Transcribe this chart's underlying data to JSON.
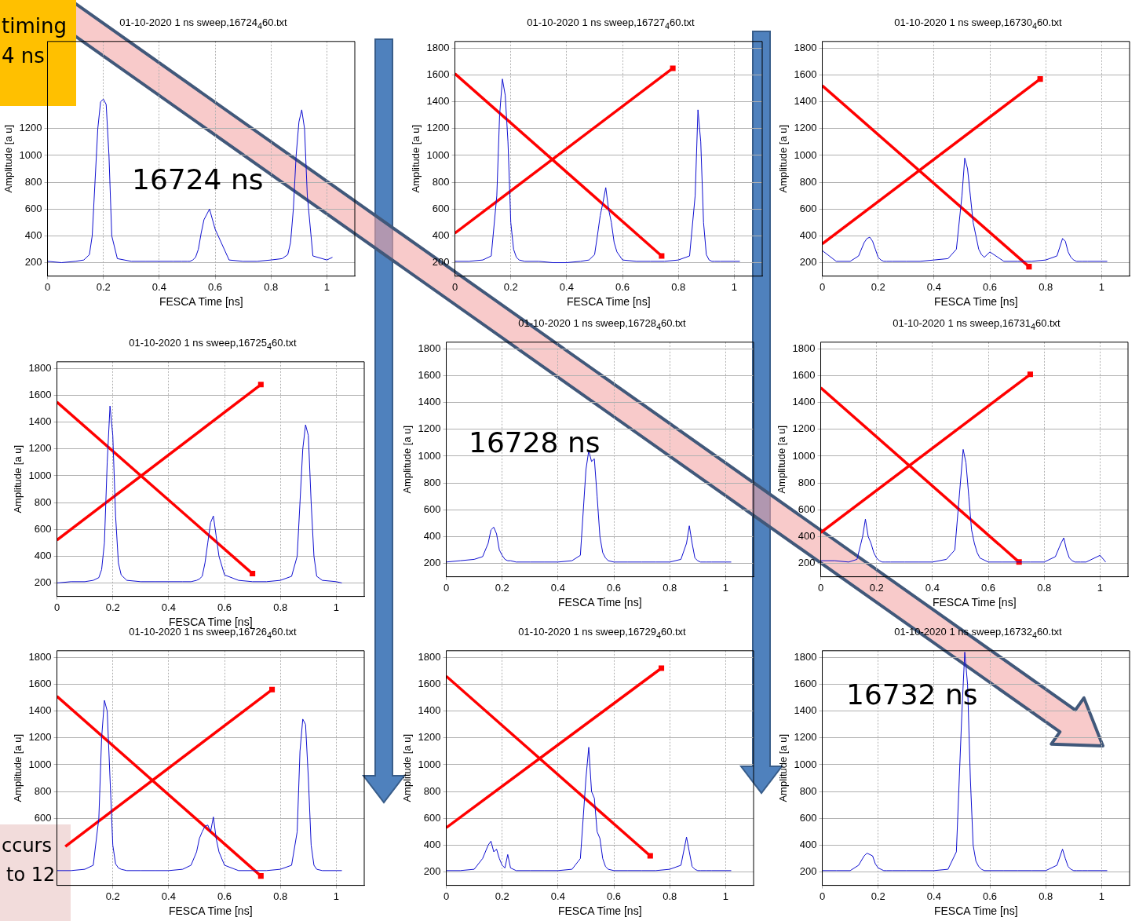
{
  "chart_data": [
    {
      "type": "line",
      "title": "01-10-2020 1 ns sweep,16724$_{4}$60.txt",
      "xlabel": "FESCA Time [ns]",
      "ylabel": "Amplitude [a u]",
      "annotations": [
        "timing",
        "4 ns",
        "16724 ns"
      ],
      "grid": true,
      "xlim": [
        0,
        1.1
      ],
      "xticks": [
        0,
        0.2,
        0.4,
        0.6,
        0.8,
        1
      ],
      "ylim": [
        100,
        1850
      ],
      "yticks": [
        200,
        400,
        600,
        800,
        1000,
        1200
      ],
      "x": [
        0,
        0.05,
        0.1,
        0.13,
        0.15,
        0.16,
        0.17,
        0.18,
        0.19,
        0.2,
        0.21,
        0.22,
        0.23,
        0.25,
        0.3,
        0.35,
        0.4,
        0.45,
        0.48,
        0.5,
        0.51,
        0.52,
        0.53,
        0.54,
        0.55,
        0.56,
        0.57,
        0.58,
        0.6,
        0.65,
        0.7,
        0.75,
        0.8,
        0.84,
        0.86,
        0.87,
        0.88,
        0.89,
        0.9,
        0.91,
        0.92,
        0.93,
        0.95,
        1,
        1.02
      ],
      "series": [
        {
          "color": "#1010d0",
          "values": [
            210,
            200,
            210,
            220,
            260,
            400,
            800,
            1200,
            1400,
            1420,
            1380,
            1000,
            400,
            230,
            210,
            210,
            210,
            210,
            210,
            210,
            210,
            220,
            240,
            300,
            420,
            520,
            560,
            600,
            450,
            220,
            210,
            210,
            220,
            230,
            260,
            350,
            600,
            1000,
            1250,
            1340,
            1200,
            700,
            250,
            220,
            240
          ]
        }
      ]
    },
    {
      "type": "line",
      "title": "01-10-2020 1 ns sweep,16727$_{4}$60.txt",
      "xlabel": "FESCA Time [ns]",
      "ylabel": "Amplitude [a u]",
      "grid": true,
      "xlim": [
        0,
        1.1
      ],
      "xticks": [
        0,
        0.2,
        0.4,
        0.6,
        0.8,
        1
      ],
      "ylim": [
        100,
        1850
      ],
      "yticks": [
        200,
        400,
        600,
        800,
        1000,
        1200,
        1400,
        1600,
        1800
      ],
      "x": [
        0,
        0.05,
        0.1,
        0.13,
        0.15,
        0.16,
        0.17,
        0.18,
        0.19,
        0.2,
        0.21,
        0.22,
        0.23,
        0.25,
        0.3,
        0.35,
        0.4,
        0.45,
        0.48,
        0.5,
        0.51,
        0.52,
        0.53,
        0.54,
        0.55,
        0.56,
        0.57,
        0.58,
        0.6,
        0.65,
        0.7,
        0.75,
        0.8,
        0.84,
        0.86,
        0.87,
        0.88,
        0.89,
        0.9,
        0.91,
        0.92,
        0.93,
        0.95,
        1,
        1.02
      ],
      "series": [
        {
          "color": "#1010d0",
          "values": [
            210,
            210,
            220,
            250,
            700,
            1300,
            1570,
            1450,
            1100,
            500,
            300,
            240,
            220,
            210,
            210,
            200,
            200,
            210,
            220,
            260,
            400,
            550,
            650,
            760,
            600,
            500,
            350,
            280,
            220,
            210,
            210,
            210,
            220,
            250,
            700,
            1340,
            1100,
            500,
            260,
            220,
            210,
            210,
            210,
            210,
            210
          ]
        },
        {
          "type": "line",
          "color": "#ff0000",
          "x": [
            0,
            0.74
          ],
          "values": [
            1610,
            250
          ]
        },
        {
          "type": "line",
          "color": "#ff0000",
          "x": [
            0,
            0.78
          ],
          "values": [
            420,
            1650
          ]
        },
        {
          "type": "scatter",
          "marker": "square",
          "color": "#ff0000",
          "x": [
            0.74,
            0.78
          ],
          "values": [
            250,
            1650
          ]
        }
      ]
    },
    {
      "type": "line",
      "title": "01-10-2020 1 ns sweep,16730$_{4}$60.txt",
      "xlabel": "FESCA Time [ns]",
      "ylabel": "Amplitude [a u]",
      "grid": true,
      "xlim": [
        0,
        1.1
      ],
      "xticks": [
        0,
        0.2,
        0.4,
        0.6,
        0.8,
        1
      ],
      "ylim": [
        100,
        1850
      ],
      "yticks": [
        200,
        400,
        600,
        800,
        1000,
        1200,
        1400,
        1600,
        1800
      ],
      "x": [
        0,
        0.05,
        0.1,
        0.13,
        0.15,
        0.16,
        0.17,
        0.18,
        0.19,
        0.2,
        0.21,
        0.22,
        0.23,
        0.25,
        0.3,
        0.35,
        0.4,
        0.45,
        0.48,
        0.5,
        0.51,
        0.52,
        0.53,
        0.54,
        0.55,
        0.56,
        0.57,
        0.58,
        0.6,
        0.65,
        0.7,
        0.75,
        0.8,
        0.84,
        0.86,
        0.87,
        0.88,
        0.89,
        0.9,
        0.91,
        0.92,
        0.93,
        0.95,
        1,
        1.02
      ],
      "series": [
        {
          "color": "#1010d0",
          "values": [
            290,
            210,
            210,
            250,
            350,
            380,
            390,
            360,
            300,
            240,
            220,
            210,
            210,
            210,
            210,
            210,
            220,
            230,
            300,
            700,
            980,
            900,
            700,
            500,
            400,
            300,
            260,
            240,
            280,
            210,
            210,
            210,
            220,
            250,
            380,
            360,
            280,
            240,
            220,
            210,
            210,
            210,
            210,
            210,
            210
          ]
        },
        {
          "type": "line",
          "color": "#ff0000",
          "x": [
            0,
            0.74
          ],
          "values": [
            1520,
            170
          ]
        },
        {
          "type": "line",
          "color": "#ff0000",
          "x": [
            0,
            0.78
          ],
          "values": [
            340,
            1570
          ]
        },
        {
          "type": "scatter",
          "marker": "square",
          "color": "#ff0000",
          "x": [
            0.74,
            0.78
          ],
          "values": [
            170,
            1570
          ]
        }
      ]
    },
    {
      "type": "line",
      "title": "01-10-2020 1 ns sweep,16725$_{4}$60.txt",
      "xlabel": "FESCA Time [ns]",
      "ylabel": "Amplitude [a u]",
      "grid": true,
      "xlim": [
        0,
        1.1
      ],
      "xticks": [
        0,
        0.2,
        0.4,
        0.6,
        0.8,
        1
      ],
      "ylim": [
        100,
        1850
      ],
      "yticks": [
        200,
        400,
        600,
        800,
        1000,
        1200,
        1400,
        1600,
        1800
      ],
      "x": [
        0,
        0.05,
        0.1,
        0.13,
        0.15,
        0.16,
        0.17,
        0.18,
        0.19,
        0.2,
        0.21,
        0.22,
        0.23,
        0.25,
        0.3,
        0.35,
        0.4,
        0.45,
        0.48,
        0.5,
        0.51,
        0.52,
        0.53,
        0.54,
        0.55,
        0.56,
        0.57,
        0.58,
        0.6,
        0.65,
        0.7,
        0.75,
        0.8,
        0.84,
        0.86,
        0.87,
        0.88,
        0.89,
        0.9,
        0.91,
        0.92,
        0.93,
        0.95,
        1,
        1.02
      ],
      "series": [
        {
          "color": "#1010d0",
          "values": [
            200,
            210,
            210,
            220,
            240,
            300,
            500,
            1100,
            1520,
            1300,
            700,
            350,
            260,
            220,
            210,
            210,
            210,
            210,
            210,
            220,
            230,
            250,
            350,
            500,
            650,
            700,
            550,
            400,
            260,
            220,
            210,
            210,
            220,
            250,
            400,
            800,
            1200,
            1380,
            1300,
            800,
            400,
            250,
            220,
            210,
            200
          ]
        },
        {
          "type": "line",
          "color": "#ff0000",
          "x": [
            0,
            0.7
          ],
          "values": [
            1550,
            270
          ]
        },
        {
          "type": "line",
          "color": "#ff0000",
          "x": [
            0,
            0.73
          ],
          "values": [
            520,
            1680
          ]
        },
        {
          "type": "scatter",
          "marker": "square",
          "color": "#ff0000",
          "x": [
            0.7,
            0.73
          ],
          "values": [
            270,
            1680
          ]
        }
      ]
    },
    {
      "type": "line",
      "title": "01-10-2020 1 ns sweep,16728$_{4}$60.txt",
      "xlabel": "FESCA Time [ns]",
      "ylabel": "Amplitude [a u]",
      "annotations": [
        "16728 ns"
      ],
      "grid": true,
      "xlim": [
        0,
        1.1
      ],
      "xticks": [
        0,
        0.2,
        0.4,
        0.6,
        0.8,
        1
      ],
      "ylim": [
        100,
        1850
      ],
      "yticks": [
        200,
        400,
        600,
        800,
        1000,
        1200,
        1400,
        1600,
        1800
      ],
      "x": [
        0,
        0.05,
        0.1,
        0.13,
        0.15,
        0.16,
        0.17,
        0.18,
        0.19,
        0.2,
        0.21,
        0.22,
        0.23,
        0.25,
        0.3,
        0.35,
        0.4,
        0.45,
        0.48,
        0.5,
        0.51,
        0.52,
        0.53,
        0.54,
        0.55,
        0.56,
        0.57,
        0.58,
        0.6,
        0.65,
        0.7,
        0.75,
        0.8,
        0.84,
        0.86,
        0.87,
        0.88,
        0.89,
        0.9,
        0.91,
        0.92,
        0.93,
        0.95,
        1,
        1.02
      ],
      "series": [
        {
          "color": "#1010d0",
          "values": [
            210,
            220,
            230,
            250,
            350,
            450,
            470,
            420,
            300,
            260,
            230,
            220,
            220,
            210,
            210,
            210,
            210,
            220,
            260,
            900,
            1040,
            960,
            980,
            700,
            400,
            280,
            240,
            220,
            210,
            210,
            210,
            210,
            210,
            230,
            350,
            480,
            350,
            240,
            220,
            210,
            210,
            210,
            210,
            210,
            210
          ]
        }
      ]
    },
    {
      "type": "line",
      "title": "01-10-2020 1 ns sweep,16731$_{4}$60.txt",
      "xlabel": "FESCA Time [ns]",
      "ylabel": "Amplitude [a u]",
      "grid": true,
      "xlim": [
        0,
        1.1
      ],
      "xticks": [
        0,
        0.2,
        0.4,
        0.6,
        0.8,
        1
      ],
      "ylim": [
        100,
        1850
      ],
      "yticks": [
        200,
        400,
        600,
        800,
        1000,
        1200,
        1400,
        1600,
        1800
      ],
      "x": [
        0,
        0.05,
        0.1,
        0.13,
        0.15,
        0.16,
        0.17,
        0.18,
        0.19,
        0.2,
        0.21,
        0.22,
        0.23,
        0.25,
        0.3,
        0.35,
        0.4,
        0.45,
        0.48,
        0.5,
        0.51,
        0.52,
        0.53,
        0.54,
        0.55,
        0.56,
        0.57,
        0.58,
        0.6,
        0.65,
        0.7,
        0.75,
        0.8,
        0.84,
        0.86,
        0.87,
        0.88,
        0.89,
        0.9,
        0.91,
        0.92,
        0.93,
        0.95,
        1,
        1.02
      ],
      "series": [
        {
          "color": "#1010d0",
          "values": [
            220,
            220,
            210,
            230,
            400,
            530,
            400,
            350,
            280,
            240,
            220,
            210,
            210,
            210,
            210,
            210,
            210,
            230,
            300,
            800,
            1050,
            950,
            700,
            450,
            350,
            280,
            240,
            230,
            210,
            210,
            210,
            210,
            210,
            250,
            350,
            390,
            300,
            240,
            220,
            210,
            210,
            210,
            210,
            260,
            210
          ]
        },
        {
          "type": "line",
          "color": "#ff0000",
          "x": [
            0,
            0.71
          ],
          "values": [
            1510,
            210
          ]
        },
        {
          "type": "line",
          "color": "#ff0000",
          "x": [
            0,
            0.75
          ],
          "values": [
            430,
            1610
          ]
        },
        {
          "type": "scatter",
          "marker": "square",
          "color": "#ff0000",
          "x": [
            0.71,
            0.75
          ],
          "values": [
            210,
            1610
          ]
        }
      ]
    },
    {
      "type": "line",
      "title": "01-10-2020 1 ns sweep,16726$_{4}$60.txt",
      "xlabel": "FESCA Time [ns]",
      "ylabel": "Amplitude [a u]",
      "annotations": [
        "ccurs",
        "to 12"
      ],
      "grid": true,
      "xlim": [
        0,
        1.1
      ],
      "xticks": [
        0.2,
        0.4,
        0.6,
        0.8,
        1
      ],
      "ylim": [
        100,
        1850
      ],
      "yticks": [
        600,
        800,
        1000,
        1200,
        1400,
        1600,
        1800
      ],
      "x": [
        0,
        0.05,
        0.1,
        0.13,
        0.15,
        0.16,
        0.17,
        0.18,
        0.19,
        0.2,
        0.21,
        0.22,
        0.23,
        0.25,
        0.3,
        0.35,
        0.4,
        0.45,
        0.48,
        0.5,
        0.51,
        0.52,
        0.53,
        0.54,
        0.55,
        0.56,
        0.57,
        0.58,
        0.6,
        0.65,
        0.7,
        0.75,
        0.8,
        0.84,
        0.86,
        0.87,
        0.88,
        0.89,
        0.9,
        0.91,
        0.92,
        0.93,
        0.95,
        1,
        1.02
      ],
      "series": [
        {
          "color": "#1010d0",
          "values": [
            210,
            210,
            220,
            250,
            600,
            1200,
            1480,
            1400,
            900,
            400,
            260,
            230,
            220,
            210,
            210,
            210,
            210,
            220,
            250,
            350,
            450,
            500,
            540,
            550,
            500,
            610,
            450,
            350,
            250,
            210,
            210,
            210,
            220,
            250,
            500,
            1100,
            1340,
            1300,
            900,
            400,
            250,
            220,
            210,
            210,
            210
          ]
        },
        {
          "type": "line",
          "color": "#ff0000",
          "x": [
            0,
            0.73
          ],
          "values": [
            1510,
            170
          ]
        },
        {
          "type": "line",
          "color": "#ff0000",
          "x": [
            0.03,
            0.77
          ],
          "values": [
            390,
            1560
          ]
        },
        {
          "type": "scatter",
          "marker": "square",
          "color": "#ff0000",
          "x": [
            0.73,
            0.77
          ],
          "values": [
            170,
            1560
          ]
        }
      ]
    },
    {
      "type": "line",
      "title": "01-10-2020 1 ns sweep,16729$_{4}$60.txt",
      "xlabel": "FESCA Time [ns]",
      "ylabel": "Amplitude [a u]",
      "grid": true,
      "xlim": [
        0,
        1.1
      ],
      "xticks": [
        0,
        0.2,
        0.4,
        0.6,
        0.8,
        1
      ],
      "ylim": [
        100,
        1850
      ],
      "yticks": [
        200,
        400,
        600,
        800,
        1000,
        1200,
        1400,
        1600,
        1800
      ],
      "x": [
        0,
        0.05,
        0.1,
        0.13,
        0.15,
        0.16,
        0.17,
        0.18,
        0.19,
        0.2,
        0.21,
        0.22,
        0.23,
        0.25,
        0.3,
        0.35,
        0.4,
        0.45,
        0.48,
        0.5,
        0.51,
        0.52,
        0.53,
        0.54,
        0.55,
        0.56,
        0.57,
        0.58,
        0.6,
        0.65,
        0.7,
        0.75,
        0.8,
        0.84,
        0.86,
        0.87,
        0.88,
        0.89,
        0.9,
        0.91,
        0.92,
        0.93,
        0.95,
        1,
        1.02
      ],
      "series": [
        {
          "color": "#1010d0",
          "values": [
            210,
            210,
            220,
            300,
            400,
            430,
            350,
            370,
            300,
            250,
            230,
            330,
            230,
            210,
            210,
            210,
            210,
            220,
            300,
            900,
            1130,
            800,
            750,
            500,
            450,
            300,
            240,
            220,
            210,
            210,
            210,
            210,
            220,
            250,
            460,
            350,
            240,
            220,
            210,
            210,
            210,
            210,
            210,
            210,
            210
          ]
        },
        {
          "type": "line",
          "color": "#ff0000",
          "x": [
            0,
            0.73
          ],
          "values": [
            1660,
            320
          ]
        },
        {
          "type": "line",
          "color": "#ff0000",
          "x": [
            0,
            0.77
          ],
          "values": [
            530,
            1720
          ]
        },
        {
          "type": "scatter",
          "marker": "square",
          "color": "#ff0000",
          "x": [
            0.73,
            0.77
          ],
          "values": [
            320,
            1720
          ]
        }
      ]
    },
    {
      "type": "line",
      "title": "01-10-2020 1 ns sweep,16732$_{4}$60.txt",
      "xlabel": "FESCA Time [ns]",
      "ylabel": "Amplitude [a u]",
      "annotations": [
        "16732 ns"
      ],
      "grid": true,
      "xlim": [
        0,
        1.1
      ],
      "xticks": [
        0,
        0.2,
        0.4,
        0.6,
        0.8,
        1
      ],
      "ylim": [
        100,
        1850
      ],
      "yticks": [
        200,
        400,
        600,
        800,
        1000,
        1200,
        1400,
        1600,
        1800
      ],
      "x": [
        0,
        0.05,
        0.1,
        0.13,
        0.15,
        0.16,
        0.17,
        0.18,
        0.19,
        0.2,
        0.21,
        0.22,
        0.23,
        0.25,
        0.3,
        0.35,
        0.4,
        0.45,
        0.48,
        0.5,
        0.51,
        0.52,
        0.53,
        0.54,
        0.55,
        0.56,
        0.57,
        0.58,
        0.6,
        0.65,
        0.7,
        0.75,
        0.8,
        0.84,
        0.86,
        0.87,
        0.88,
        0.89,
        0.9,
        0.91,
        0.92,
        0.93,
        0.95,
        1,
        1.02
      ],
      "series": [
        {
          "color": "#1010d0",
          "values": [
            210,
            210,
            210,
            250,
            320,
            340,
            330,
            320,
            260,
            230,
            220,
            210,
            210,
            210,
            210,
            210,
            210,
            220,
            350,
            1400,
            1840,
            1600,
            900,
            400,
            280,
            240,
            220,
            210,
            210,
            210,
            210,
            210,
            210,
            250,
            370,
            300,
            240,
            220,
            210,
            210,
            210,
            210,
            210,
            210,
            210
          ]
        }
      ]
    }
  ]
}
